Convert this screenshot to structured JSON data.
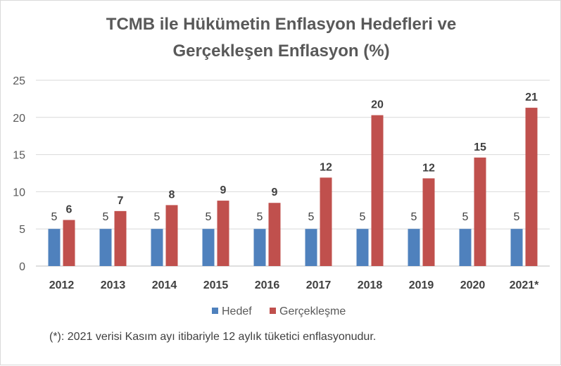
{
  "chart_data": {
    "type": "bar",
    "title_lines": [
      "TCMB  ile Hükümetin Enflasyon Hedefleri ve",
      "Gerçekleşen Enflasyon (%)"
    ],
    "categories": [
      "2012",
      "2013",
      "2014",
      "2015",
      "2016",
      "2017",
      "2018",
      "2019",
      "2020",
      "2021*"
    ],
    "series": [
      {
        "name": "Hedef",
        "color": "#4f81bd",
        "values": [
          5,
          5,
          5,
          5,
          5,
          5,
          5,
          5,
          5,
          5
        ],
        "labels": [
          "5",
          "5",
          "5",
          "5",
          "5",
          "5",
          "5",
          "5",
          "5",
          "5"
        ]
      },
      {
        "name": "Gerçekleşme",
        "color": "#c0504d",
        "values": [
          6.2,
          7.4,
          8.2,
          8.8,
          8.5,
          11.9,
          20.3,
          11.8,
          14.6,
          21.3
        ],
        "labels": [
          "6",
          "7",
          "8",
          "9",
          "9",
          "12",
          "20",
          "12",
          "15",
          "21"
        ]
      }
    ],
    "yticks": [
      "0",
      "5",
      "10",
      "15",
      "20",
      "25"
    ],
    "ylim": [
      0,
      25
    ],
    "grid": true,
    "legend_position": "bottom",
    "note": "(*): 2021 verisi  Kasım ayı itibariyle 12 aylık tüketici enflasyonudur."
  }
}
